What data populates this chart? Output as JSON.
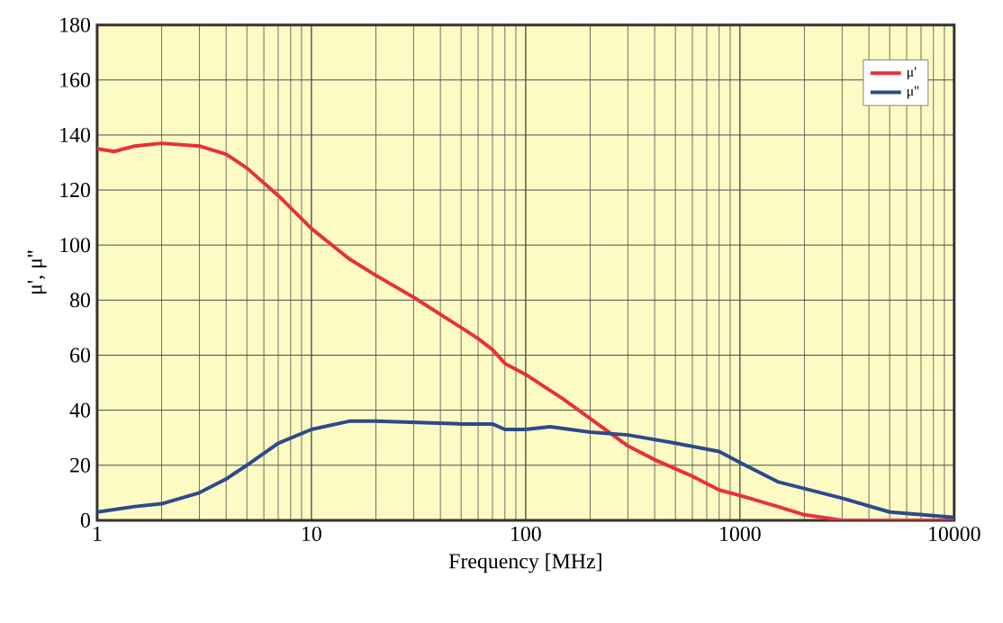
{
  "chart_data": {
    "type": "line",
    "xlabel": "Frequency [MHz]",
    "ylabel": "μ', μ''",
    "log": "x",
    "xlim": [
      1,
      10000
    ],
    "xticks": [
      1,
      10,
      100,
      1000,
      10000
    ],
    "ylim": [
      0,
      180
    ],
    "yticks": [
      0,
      20,
      40,
      60,
      80,
      100,
      120,
      140,
      160,
      180
    ],
    "grid": true,
    "legend": "top right",
    "series": [
      {
        "name": "μ'",
        "color": "#e8303c",
        "x": [
          1,
          1.2,
          1.5,
          2,
          3,
          4,
          5,
          7,
          10,
          15,
          20,
          30,
          50,
          60,
          70,
          80,
          100,
          150,
          200,
          300,
          400,
          600,
          800,
          1000,
          1500,
          2000,
          3000,
          10000
        ],
        "values": [
          135,
          134,
          136,
          137,
          136,
          133,
          128,
          118,
          106,
          95,
          89,
          81,
          70,
          66,
          62,
          57,
          53,
          44,
          37,
          27,
          22,
          16,
          11,
          9,
          5,
          2,
          0,
          0
        ]
      },
      {
        "name": "μ''",
        "color": "#2c4a8c",
        "x": [
          1,
          1.5,
          2,
          3,
          4,
          5,
          7,
          10,
          15,
          20,
          50,
          70,
          80,
          100,
          130,
          200,
          300,
          500,
          800,
          1000,
          1500,
          3000,
          5000,
          10000
        ],
        "values": [
          3,
          5,
          6,
          10,
          15,
          20,
          28,
          33,
          36,
          36,
          35,
          35,
          33,
          33,
          34,
          32,
          31,
          28,
          25,
          21,
          14,
          8,
          3,
          1
        ]
      }
    ]
  }
}
